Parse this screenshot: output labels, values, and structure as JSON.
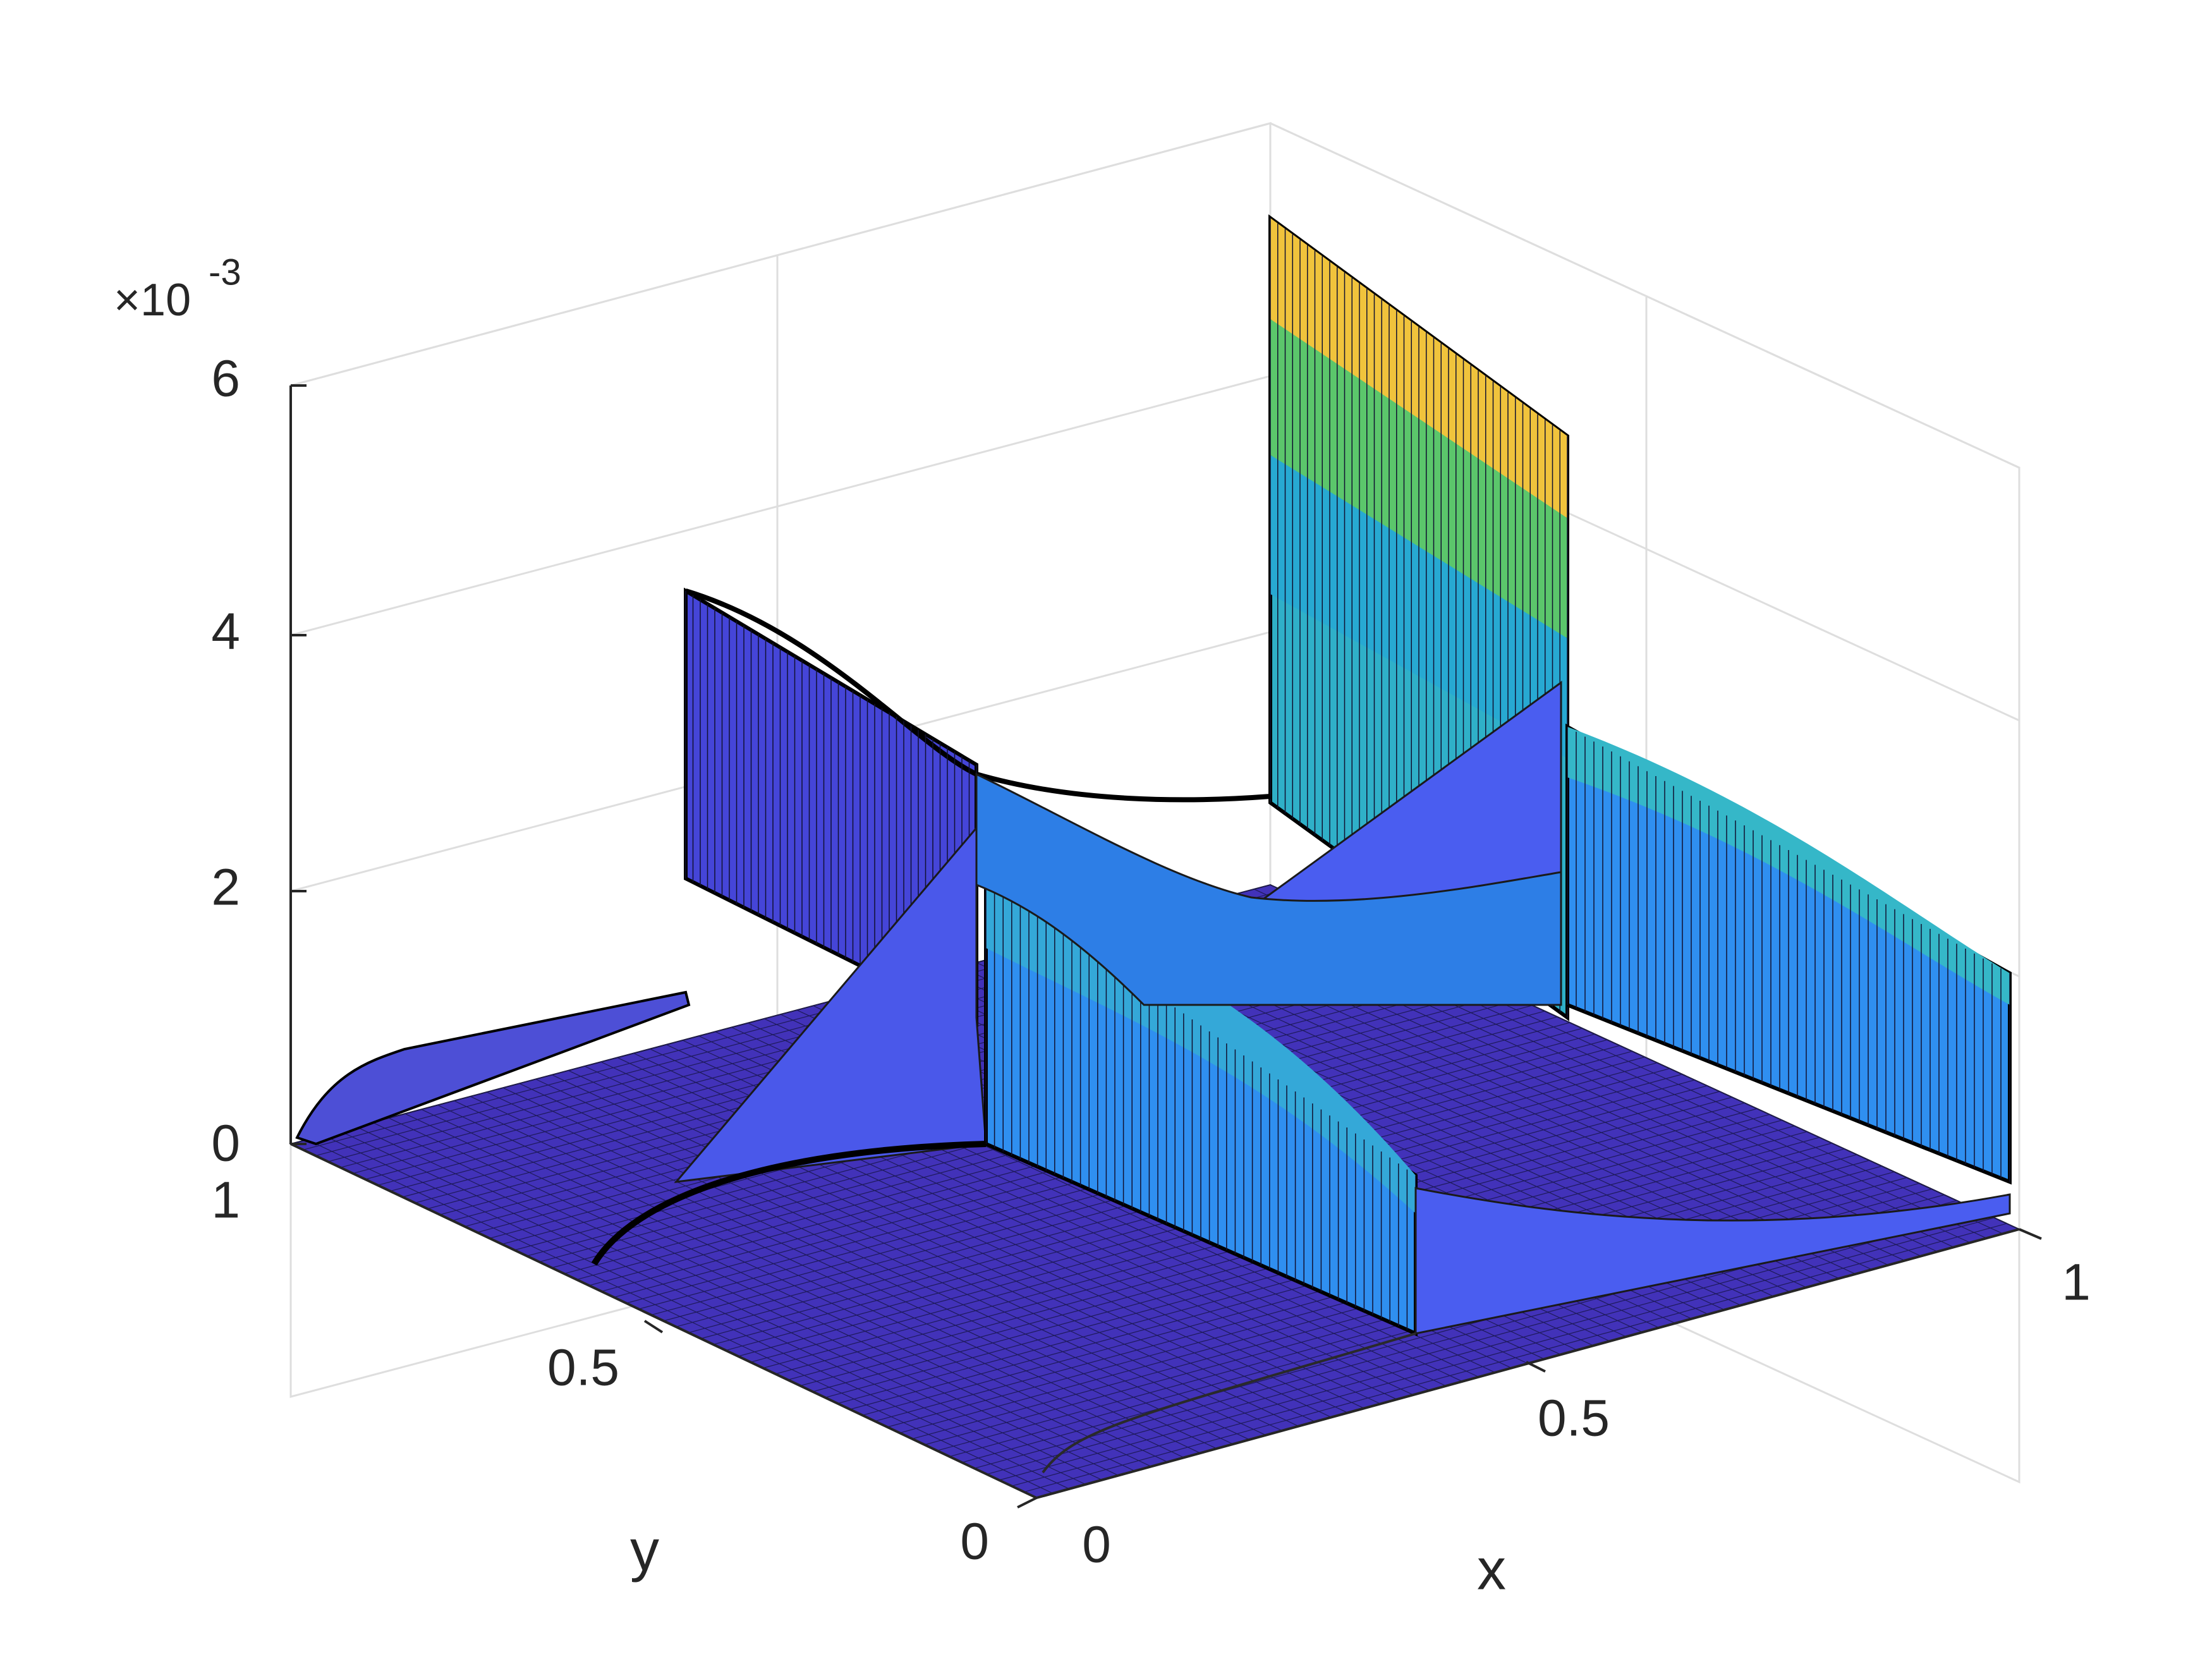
{
  "chart_data": {
    "type": "surface",
    "title": "",
    "xlabel": "x",
    "ylabel": "y",
    "zlabel": "",
    "x_ticks": [
      "0",
      "0.5",
      "1"
    ],
    "y_ticks": [
      "0",
      "0.5",
      "1"
    ],
    "z_ticks": [
      "0",
      "2",
      "4",
      "6"
    ],
    "z_exponent_label": "×10",
    "z_exponent_power": "-3",
    "xlim": [
      0,
      1
    ],
    "ylim": [
      0,
      1
    ],
    "zlim": [
      0,
      0.006
    ],
    "grid": true,
    "colormap": [
      "#3e26a8",
      "#4352f0",
      "#2f95f5",
      "#1bb6c3",
      "#48cb86",
      "#bfbd39",
      "#f9d33d"
    ],
    "surface": {
      "shape": "cross of thin vertical walls on a nearly flat plane",
      "walls": [
        {
          "name": "wall along x at y=0.5",
          "peak_z": 0.0024
        },
        {
          "name": "wall along y at x=0.5",
          "peak_z": 0.0026
        },
        {
          "name": "back corner wall at x=0",
          "peak_z": 0.0061
        },
        {
          "name": "left wall at x=0, y near 1",
          "peak_z": 0.0038
        },
        {
          "name": "right wall at x=1",
          "peak_z": 0.0025
        }
      ],
      "base_z": 0.0001
    }
  }
}
